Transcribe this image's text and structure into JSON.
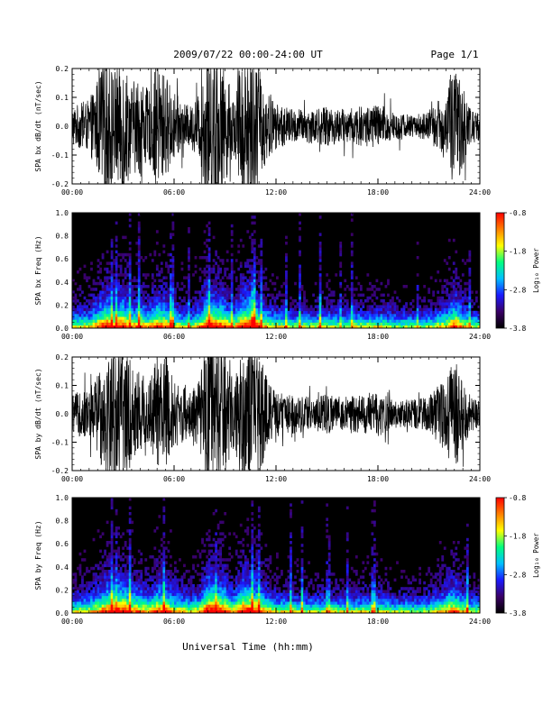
{
  "header": {
    "title": "2009/07/22  00:00-24:00 UT",
    "page": "Page 1/1"
  },
  "footer": {
    "xlabel": "Universal Time (hh:mm)"
  },
  "x_ticks": [
    "00:00",
    "06:00",
    "12:00",
    "18:00",
    "24:00"
  ],
  "colorbar": {
    "label": "Log₁₀ Power",
    "ticks": [
      "-0.8",
      "-1.8",
      "-2.8",
      "-3.8"
    ],
    "range": [
      -3.8,
      -0.8
    ],
    "colors": [
      "#000000",
      "#3a0066",
      "#1a1aff",
      "#00bfff",
      "#00ff80",
      "#ffff00",
      "#ff8000",
      "#ff0000"
    ]
  },
  "chart_data": [
    {
      "type": "line",
      "ylabel": "SPA bx dB/dt (nT/sec)",
      "xlim": [
        "00:00",
        "24:00"
      ],
      "ylim": [
        -0.2,
        0.2
      ],
      "y_ticks": [
        "0.2",
        "0.1",
        "0.0",
        "-0.1",
        "-0.2"
      ],
      "series": [
        {
          "x_hours": [
            0,
            1,
            1.5,
            2,
            2.5,
            3,
            3.5,
            4,
            4.5,
            5,
            5.5,
            6,
            6.5,
            7,
            7.5,
            8,
            8.5,
            9,
            9.5,
            10,
            10.5,
            11,
            11.5,
            12,
            13,
            14,
            15,
            16,
            17,
            18,
            19,
            20,
            21,
            22,
            22.5,
            23,
            23.5,
            24
          ],
          "amplitude": [
            0.07,
            0.09,
            0.17,
            0.25,
            0.2,
            0.25,
            0.15,
            0.18,
            0.12,
            0.22,
            0.18,
            0.12,
            0.08,
            0.07,
            0.12,
            0.28,
            0.25,
            0.2,
            0.1,
            0.25,
            0.28,
            0.2,
            0.12,
            0.08,
            0.06,
            0.06,
            0.07,
            0.06,
            0.07,
            0.08,
            0.05,
            0.04,
            0.05,
            0.12,
            0.22,
            0.14,
            0.06,
            0.05
          ]
        }
      ]
    },
    {
      "type": "heatmap",
      "ylabel": "SPA bx Freq (Hz)",
      "xlim": [
        "00:00",
        "24:00"
      ],
      "ylim": [
        0.0,
        1.0
      ],
      "y_ticks": [
        "1.0",
        "0.8",
        "0.6",
        "0.4",
        "0.2",
        "0.0"
      ],
      "zlabel": "Log₁₀ Power",
      "zlim": [
        -3.8,
        -0.8
      ]
    },
    {
      "type": "line",
      "ylabel": "SPA by dB/dt (nT/sec)",
      "xlim": [
        "00:00",
        "24:00"
      ],
      "ylim": [
        -0.2,
        0.2
      ],
      "y_ticks": [
        "0.2",
        "0.1",
        "0.0",
        "-0.1",
        "-0.2"
      ],
      "series": [
        {
          "x_hours": [
            0,
            1,
            1.5,
            2,
            2.5,
            3,
            3.5,
            4,
            4.5,
            5,
            5.5,
            6,
            6.5,
            7,
            7.5,
            8,
            8.5,
            9,
            9.5,
            10,
            10.5,
            11,
            11.5,
            12,
            13,
            14,
            15,
            16,
            17,
            18,
            19,
            20,
            21,
            22,
            22.5,
            23,
            23.5,
            24
          ],
          "amplitude": [
            0.07,
            0.09,
            0.15,
            0.22,
            0.25,
            0.25,
            0.18,
            0.16,
            0.12,
            0.2,
            0.2,
            0.12,
            0.1,
            0.08,
            0.12,
            0.28,
            0.26,
            0.22,
            0.12,
            0.25,
            0.26,
            0.22,
            0.12,
            0.08,
            0.07,
            0.06,
            0.07,
            0.06,
            0.07,
            0.08,
            0.05,
            0.05,
            0.06,
            0.14,
            0.2,
            0.12,
            0.06,
            0.05
          ]
        }
      ]
    },
    {
      "type": "heatmap",
      "ylabel": "SPA by Freq (Hz)",
      "xlim": [
        "00:00",
        "24:00"
      ],
      "ylim": [
        0.0,
        1.0
      ],
      "y_ticks": [
        "1.0",
        "0.8",
        "0.6",
        "0.4",
        "0.2",
        "0.0"
      ],
      "zlabel": "Log₁₀ Power",
      "zlim": [
        -3.8,
        -0.8
      ]
    }
  ]
}
